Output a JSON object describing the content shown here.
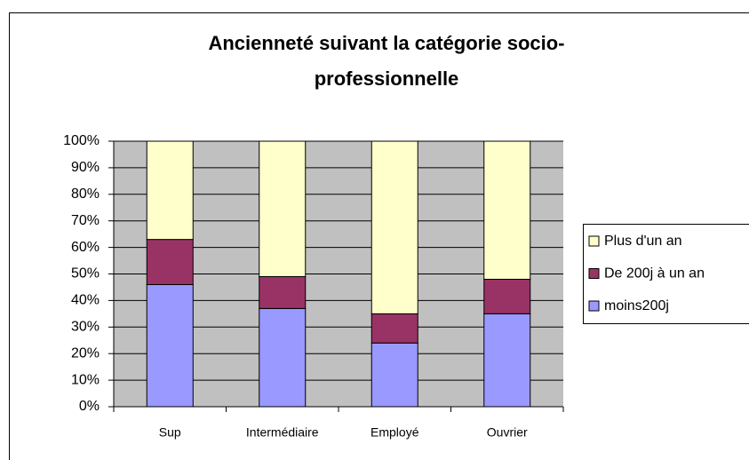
{
  "chart_data": {
    "type": "stacked_bar_100",
    "title": [
      "Ancienneté suivant la catégorie socio-",
      "professionnelle"
    ],
    "categories": [
      "Sup",
      "Intermédiaire",
      "Employé",
      "Ouvrier"
    ],
    "series": [
      {
        "name": "moins200j",
        "color": "#9999ff",
        "values": [
          46,
          37,
          24,
          35
        ]
      },
      {
        "name": "De 200j à un an",
        "color": "#993366",
        "values": [
          17,
          12,
          11,
          13
        ]
      },
      {
        "name": "Plus d'un an",
        "color": "#ffffcc",
        "values": [
          37,
          51,
          65,
          52
        ]
      }
    ],
    "ylim": [
      0,
      100
    ],
    "yticks": [
      {
        "value": 0,
        "label": "0%"
      },
      {
        "value": 10,
        "label": "10%"
      },
      {
        "value": 20,
        "label": "20%"
      },
      {
        "value": 30,
        "label": "30%"
      },
      {
        "value": 40,
        "label": "40%"
      },
      {
        "value": 50,
        "label": "50%"
      },
      {
        "value": 60,
        "label": "60%"
      },
      {
        "value": 70,
        "label": "70%"
      },
      {
        "value": 80,
        "label": "80%"
      },
      {
        "value": 90,
        "label": "90%"
      },
      {
        "value": 100,
        "label": "100%"
      }
    ],
    "grid": true,
    "legend": "right"
  }
}
